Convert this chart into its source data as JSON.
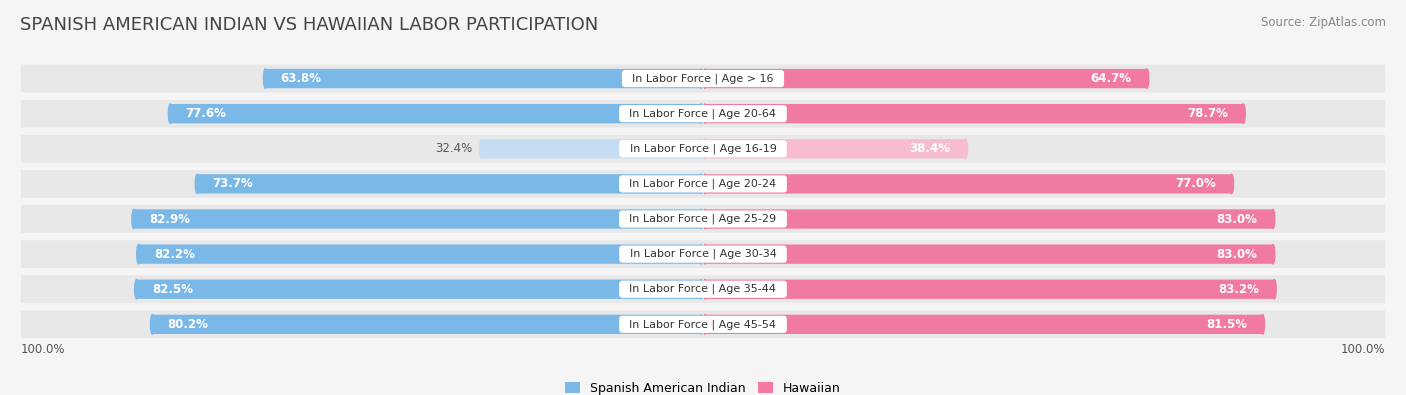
{
  "title": "SPANISH AMERICAN INDIAN VS HAWAIIAN LABOR PARTICIPATION",
  "source": "Source: ZipAtlas.com",
  "categories": [
    "In Labor Force | Age > 16",
    "In Labor Force | Age 20-64",
    "In Labor Force | Age 16-19",
    "In Labor Force | Age 20-24",
    "In Labor Force | Age 25-29",
    "In Labor Force | Age 30-34",
    "In Labor Force | Age 35-44",
    "In Labor Force | Age 45-54"
  ],
  "spanish_values": [
    63.8,
    77.6,
    32.4,
    73.7,
    82.9,
    82.2,
    82.5,
    80.2
  ],
  "hawaiian_values": [
    64.7,
    78.7,
    38.4,
    77.0,
    83.0,
    83.0,
    83.2,
    81.5
  ],
  "spanish_color": "#7ab8e8",
  "hawaiian_color": "#f07aa0",
  "spanish_color_light": "#c5ddf2",
  "hawaiian_color_light": "#f8bcd0",
  "bg_color": "#f5f5f5",
  "row_bg_color": "#e8e8e8",
  "max_val": 100.0,
  "legend_spanish": "Spanish American Indian",
  "legend_hawaiian": "Hawaiian",
  "left_label": "100.0%",
  "right_label": "100.0%",
  "title_fontsize": 13,
  "source_fontsize": 8.5,
  "bar_label_fontsize": 8.5,
  "cat_label_fontsize": 8.0
}
